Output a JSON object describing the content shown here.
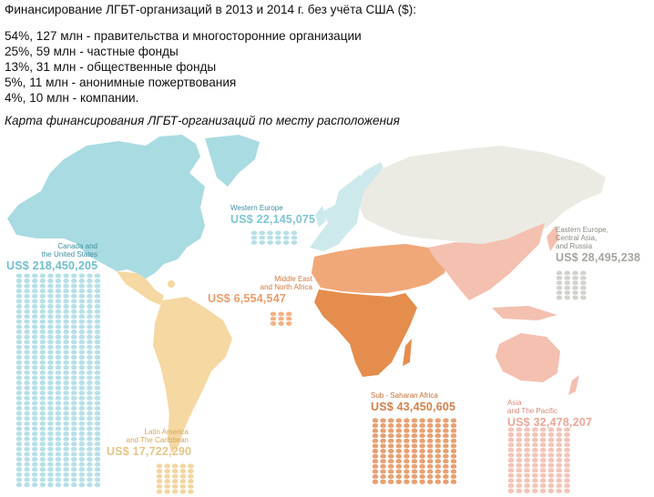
{
  "header": {
    "title": "Финансирование ЛГБТ-организаций в 2013 и 2014 г. без учёта США ($):",
    "stats": [
      "54%, 127 млн - правительства и многосторонние организации",
      "25%, 59 млн - частные фонды",
      "13%, 31 млн - общественные фонды",
      "5%, 11 млн - анонимные пожертвования",
      "4%, 10 млн - компании."
    ],
    "subtitle": "Карта финансирования ЛГБТ-организаций по месту расположения"
  },
  "regions": [
    {
      "id": "canada-us",
      "name": "Canada and\nthe United States",
      "amount": "US$ 218,450,205",
      "color": "#8ecfd9"
    },
    {
      "id": "western-europe",
      "name": "Western Europe",
      "amount": "US$ 22,145,075",
      "color": "#9fd6df"
    },
    {
      "id": "middle-east",
      "name": "Middle East\nand North Africa",
      "amount": "US$ 6,554,547",
      "color": "#f0a572"
    },
    {
      "id": "eastern-europe",
      "name": "Eastern Europe,\nCentral Asia,\nand Russia",
      "amount": "US$ 28,495,238",
      "color": "#c7c7c0"
    },
    {
      "id": "sub-saharan",
      "name": "Sub - Saharan Africa",
      "amount": "US$ 43,450,605",
      "color": "#e0874b"
    },
    {
      "id": "asia-pacific",
      "name": "Asia\nand The Pacific",
      "amount": "US$ 32,478,207",
      "color": "#f1aea0"
    },
    {
      "id": "latin-america",
      "name": "Latin America\nand The Caribbean",
      "amount": "US$ 17,722,290",
      "color": "#efcf8e"
    }
  ],
  "colors": {
    "north_america": "#a9dbe2",
    "western_europe": "#cde9ec",
    "eurasia": "#ebebe4",
    "mena": "#f1a878",
    "africa": "#e58d4c",
    "asia": "#f4c0b0",
    "latin": "#f5d8a2",
    "coins_canada": "#b6e0e7",
    "coins_weurope": "#b6e0e7",
    "coins_mena": "#f2b184",
    "coins_eeurope": "#d3d3cd",
    "coins_africa": "#e7a173",
    "coins_asia": "#f4c4b8",
    "coins_latin": "#f2d6a0"
  }
}
